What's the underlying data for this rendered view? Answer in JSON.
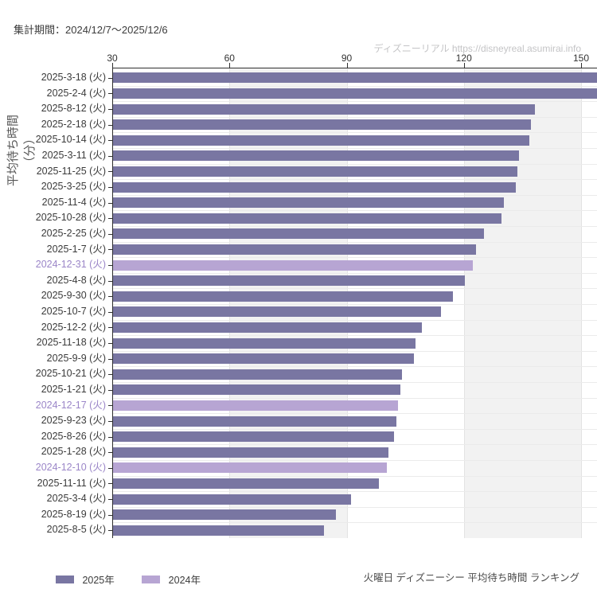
{
  "header": {
    "title": "集計期間：2024/12/7〜2025/12/6",
    "watermark": "ディズニーリアル https://disneyreal.asumirai.info"
  },
  "footer": {
    "note": "火曜日 ディズニーシー 平均待ち時間 ランキング"
  },
  "legend": {
    "items": [
      {
        "label": "2025年",
        "color": "#7976A2",
        "year": 2025
      },
      {
        "label": "2024年",
        "color": "#B7A5D3",
        "year": 2024
      }
    ]
  },
  "colors": {
    "bar2025": "#7976A2",
    "bar2024": "#B7A5D3",
    "label2024": "#9B86C8",
    "labelDefault": "#3b3b3b",
    "axis": "#2f2f2f",
    "band": "#F2F2F2",
    "hgrid": "#EBEBEB",
    "vgrid": "#E3E3E3"
  },
  "chart_data": {
    "type": "bar",
    "orientation": "horizontal",
    "title": "",
    "ylabel": "平均待ち時間（分）",
    "xlabel": "",
    "xlim": [
      30,
      154
    ],
    "xticks": [
      30,
      60,
      90,
      120,
      150
    ],
    "grid": "column-bands",
    "legend_position": "bottom-left",
    "rows": [
      {
        "label": "2025-3-18 (火)",
        "value": 158,
        "year": 2025,
        "clipped": true
      },
      {
        "label": "2025-2-4 (火)",
        "value": 156,
        "year": 2025,
        "clipped": true
      },
      {
        "label": "2025-8-12 (火)",
        "value": 138,
        "year": 2025
      },
      {
        "label": "2025-2-18 (火)",
        "value": 137,
        "year": 2025
      },
      {
        "label": "2025-10-14 (火)",
        "value": 136.5,
        "year": 2025
      },
      {
        "label": "2025-3-11 (火)",
        "value": 134,
        "year": 2025
      },
      {
        "label": "2025-11-25 (火)",
        "value": 133.5,
        "year": 2025
      },
      {
        "label": "2025-3-25 (火)",
        "value": 133,
        "year": 2025
      },
      {
        "label": "2025-11-4 (火)",
        "value": 130,
        "year": 2025
      },
      {
        "label": "2025-10-28 (火)",
        "value": 129.5,
        "year": 2025
      },
      {
        "label": "2025-2-25 (火)",
        "value": 125,
        "year": 2025
      },
      {
        "label": "2025-1-7 (火)",
        "value": 123,
        "year": 2025
      },
      {
        "label": "2024-12-31 (火)",
        "value": 122,
        "year": 2024
      },
      {
        "label": "2025-4-8 (火)",
        "value": 120,
        "year": 2025
      },
      {
        "label": "2025-9-30 (火)",
        "value": 117,
        "year": 2025
      },
      {
        "label": "2025-10-7 (火)",
        "value": 114,
        "year": 2025
      },
      {
        "label": "2025-12-2 (火)",
        "value": 109,
        "year": 2025
      },
      {
        "label": "2025-11-18 (火)",
        "value": 107.5,
        "year": 2025
      },
      {
        "label": "2025-9-9 (火)",
        "value": 107,
        "year": 2025
      },
      {
        "label": "2025-10-21 (火)",
        "value": 104,
        "year": 2025
      },
      {
        "label": "2025-1-21 (火)",
        "value": 103.5,
        "year": 2025
      },
      {
        "label": "2024-12-17 (火)",
        "value": 103,
        "year": 2024
      },
      {
        "label": "2025-9-23 (火)",
        "value": 102.5,
        "year": 2025
      },
      {
        "label": "2025-8-26 (火)",
        "value": 102,
        "year": 2025
      },
      {
        "label": "2025-1-28 (火)",
        "value": 100.5,
        "year": 2025
      },
      {
        "label": "2024-12-10 (火)",
        "value": 100,
        "year": 2024
      },
      {
        "label": "2025-11-11 (火)",
        "value": 98,
        "year": 2025
      },
      {
        "label": "2025-3-4 (火)",
        "value": 91,
        "year": 2025
      },
      {
        "label": "2025-8-19 (火)",
        "value": 87,
        "year": 2025
      },
      {
        "label": "2025-8-5 (火)",
        "value": 84,
        "year": 2025
      }
    ]
  }
}
